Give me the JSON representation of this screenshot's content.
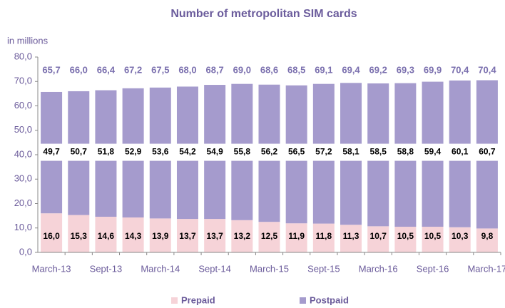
{
  "chart_data": {
    "type": "stacked_bar",
    "title": "Number of metropolitan SIM cards",
    "ylabel": "in millions",
    "categories": [
      "March-13",
      null,
      "Sept-13",
      null,
      "March-14",
      null,
      "Sept-14",
      null,
      "March-15",
      null,
      "Sept-15",
      null,
      "March-16",
      null,
      "Sept-16",
      null,
      "March-17"
    ],
    "series": [
      {
        "name": "Prepaid",
        "color": "#f6d3d8",
        "values": [
          16.0,
          15.3,
          14.6,
          14.3,
          13.9,
          13.7,
          13.7,
          13.2,
          12.5,
          11.9,
          11.8,
          11.3,
          10.7,
          10.5,
          10.5,
          10.3,
          9.8
        ],
        "value_labels": [
          "16,0",
          "15,3",
          "14,6",
          "14,3",
          "13,9",
          "13,7",
          "13,7",
          "13,2",
          "12,5",
          "11,9",
          "11,8",
          "11,3",
          "10,7",
          "10,5",
          "10,5",
          "10,3",
          "9,8"
        ]
      },
      {
        "name": "Postpaid",
        "color": "#a59bcd",
        "values": [
          49.7,
          50.7,
          51.8,
          52.9,
          53.6,
          54.2,
          54.9,
          55.8,
          56.2,
          56.5,
          57.2,
          58.1,
          58.5,
          58.8,
          59.4,
          60.1,
          60.7
        ],
        "value_labels": [
          "49,7",
          "50,7",
          "51,8",
          "52,9",
          "53,6",
          "54,2",
          "54,9",
          "55,8",
          "56,2",
          "56,5",
          "57,2",
          "58,1",
          "58,5",
          "58,8",
          "59,4",
          "60,1",
          "60,7"
        ]
      }
    ],
    "totals": [
      65.7,
      66.0,
      66.4,
      67.2,
      67.5,
      68.0,
      68.7,
      69.0,
      68.6,
      68.5,
      69.1,
      69.4,
      69.2,
      69.3,
      69.9,
      70.4,
      70.4
    ],
    "total_labels": [
      "65,7",
      "66,0",
      "66,4",
      "67,2",
      "67,5",
      "68,0",
      "68,7",
      "69,0",
      "68,6",
      "68,5",
      "69,1",
      "69,4",
      "69,2",
      "69,3",
      "69,9",
      "70,4",
      "70,4"
    ],
    "ylim": [
      0,
      80
    ],
    "yticks": [
      {
        "value": 0,
        "label": "0,0"
      },
      {
        "value": 10,
        "label": "10,0"
      },
      {
        "value": 20,
        "label": "20,0"
      },
      {
        "value": 30,
        "label": "30,0"
      },
      {
        "value": 40,
        "label": "40,0"
      },
      {
        "value": 50,
        "label": "50,0"
      },
      {
        "value": 60,
        "label": "60,0"
      },
      {
        "value": 70,
        "label": "70,0"
      },
      {
        "value": 80,
        "label": "80,0"
      }
    ],
    "legend": "bottom"
  }
}
